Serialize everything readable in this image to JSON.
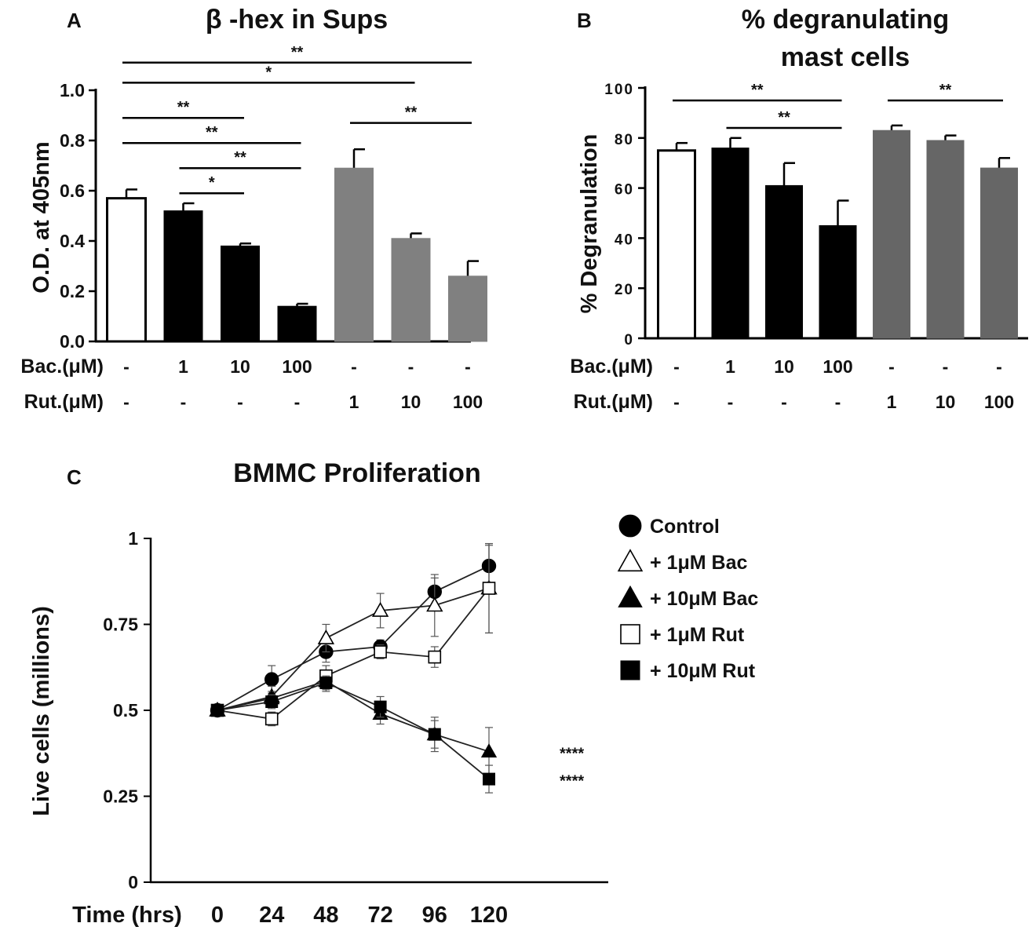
{
  "figure": {
    "panel_labels": [
      "A",
      "B",
      "C"
    ]
  },
  "chart_data": [
    {
      "panel": "A",
      "type": "bar",
      "title": "β -hex in Sups",
      "ylabel": "O.D. at 405nm",
      "xlabel": "",
      "ylim": [
        0,
        1.0
      ],
      "yticks": [
        "0.0",
        "0.2",
        "0.4",
        "0.6",
        "0.8",
        "1.0"
      ],
      "ytick_values": [
        0,
        0.2,
        0.4,
        0.6,
        0.8,
        1.0
      ],
      "row_labels": [
        "Bac.(μM)",
        "Rut.(μM)"
      ],
      "bac_conditions": [
        "-",
        "1",
        "10",
        "100",
        "-",
        "-",
        "-"
      ],
      "rut_conditions": [
        "-",
        "-",
        "-",
        "-",
        "1",
        "10",
        "100"
      ],
      "values": [
        0.57,
        0.52,
        0.38,
        0.14,
        0.69,
        0.41,
        0.26
      ],
      "errors": [
        0.035,
        0.03,
        0.01,
        0.01,
        0.075,
        0.02,
        0.06
      ],
      "bar_colors": [
        "#ffffff",
        "#000000",
        "#000000",
        "#000000",
        "#808080",
        "#808080",
        "#808080"
      ],
      "significance": [
        {
          "from": 0,
          "to": 6,
          "y": 1.11,
          "label": "**"
        },
        {
          "from": 0,
          "to": 5,
          "y": 1.03,
          "label": "*"
        },
        {
          "from": 0,
          "to": 2,
          "y": 0.89,
          "label": "**"
        },
        {
          "from": 0,
          "to": 3,
          "y": 0.79,
          "label": "**"
        },
        {
          "from": 1,
          "to": 3,
          "y": 0.69,
          "label": "**"
        },
        {
          "from": 1,
          "to": 2,
          "y": 0.59,
          "label": "*"
        },
        {
          "from": 4,
          "to": 6,
          "y": 0.87,
          "label": "**"
        }
      ]
    },
    {
      "panel": "B",
      "type": "bar",
      "title": "% degranulating mast cells",
      "title_lines": [
        "% degranulating",
        "mast cells"
      ],
      "ylabel": "% Degranulation",
      "xlabel": "",
      "ylim": [
        0,
        100
      ],
      "yticks": [
        "0",
        "20",
        "40",
        "60",
        "80",
        "100"
      ],
      "ytick_values": [
        0,
        20,
        40,
        60,
        80,
        100
      ],
      "row_labels": [
        "Bac.(μM)",
        "Rut.(μM)"
      ],
      "bac_conditions": [
        "-",
        "1",
        "10",
        "100",
        "-",
        "-",
        "-"
      ],
      "rut_conditions": [
        "-",
        "-",
        "-",
        "-",
        "1",
        "10",
        "100"
      ],
      "values": [
        75,
        76,
        61,
        45,
        83,
        79,
        68
      ],
      "errors": [
        3,
        4,
        9,
        10,
        2,
        2,
        4
      ],
      "bar_colors": [
        "#ffffff",
        "#000000",
        "#000000",
        "#000000",
        "#666666",
        "#666666",
        "#666666"
      ],
      "significance": [
        {
          "from": 0,
          "to": 3,
          "y": 95,
          "label": "**"
        },
        {
          "from": 1,
          "to": 3,
          "y": 84,
          "label": "**"
        },
        {
          "from": 4,
          "to": 6,
          "y": 95,
          "label": "**"
        }
      ]
    },
    {
      "panel": "C",
      "type": "line",
      "title": "BMMC Proliferation",
      "xlabel": "Time (hrs)",
      "ylabel": "Live cells (millions)",
      "x": [
        0,
        24,
        48,
        72,
        96,
        120
      ],
      "xticks": [
        "0",
        "24",
        "48",
        "72",
        "96",
        "120"
      ],
      "ylim": [
        0,
        1
      ],
      "yticks": [
        "0",
        "0.25",
        "0.5",
        "0.75",
        "1"
      ],
      "ytick_values": [
        0,
        0.25,
        0.5,
        0.75,
        1
      ],
      "series": [
        {
          "name": "Control",
          "marker": "circle",
          "filled": true,
          "values": [
            0.5,
            0.59,
            0.67,
            0.685,
            0.845,
            0.92
          ],
          "errors": [
            0,
            0.04,
            0.03,
            0.02,
            0.04,
            0.06
          ]
        },
        {
          "name": "+ 1μM Bac",
          "marker": "triangle",
          "filled": false,
          "values": [
            0.5,
            0.54,
            0.71,
            0.79,
            0.805,
            0.855
          ],
          "errors": [
            0,
            0.03,
            0.04,
            0.05,
            0.09,
            0.13
          ]
        },
        {
          "name": "+ 10μM Bac",
          "marker": "triangle",
          "filled": true,
          "values": [
            0.5,
            0.535,
            0.585,
            0.49,
            0.43,
            0.38
          ],
          "errors": [
            0,
            0.02,
            0.03,
            0.03,
            0.05,
            0.07
          ]
        },
        {
          "name": "+ 1μM Rut",
          "marker": "square",
          "filled": false,
          "values": [
            0.5,
            0.475,
            0.6,
            0.67,
            0.655,
            0.855
          ],
          "errors": [
            0,
            0.02,
            0.03,
            0.02,
            0.03,
            0.13
          ]
        },
        {
          "name": "+ 10μM Rut",
          "marker": "square",
          "filled": true,
          "values": [
            0.5,
            0.525,
            0.58,
            0.51,
            0.43,
            0.3
          ],
          "errors": [
            0,
            0.02,
            0.02,
            0.03,
            0.04,
            0.04
          ]
        }
      ],
      "annotations": [
        {
          "series": "+ 10μM Bac",
          "label": "****"
        },
        {
          "series": "+ 10μM Rut",
          "label": "****"
        }
      ]
    }
  ]
}
